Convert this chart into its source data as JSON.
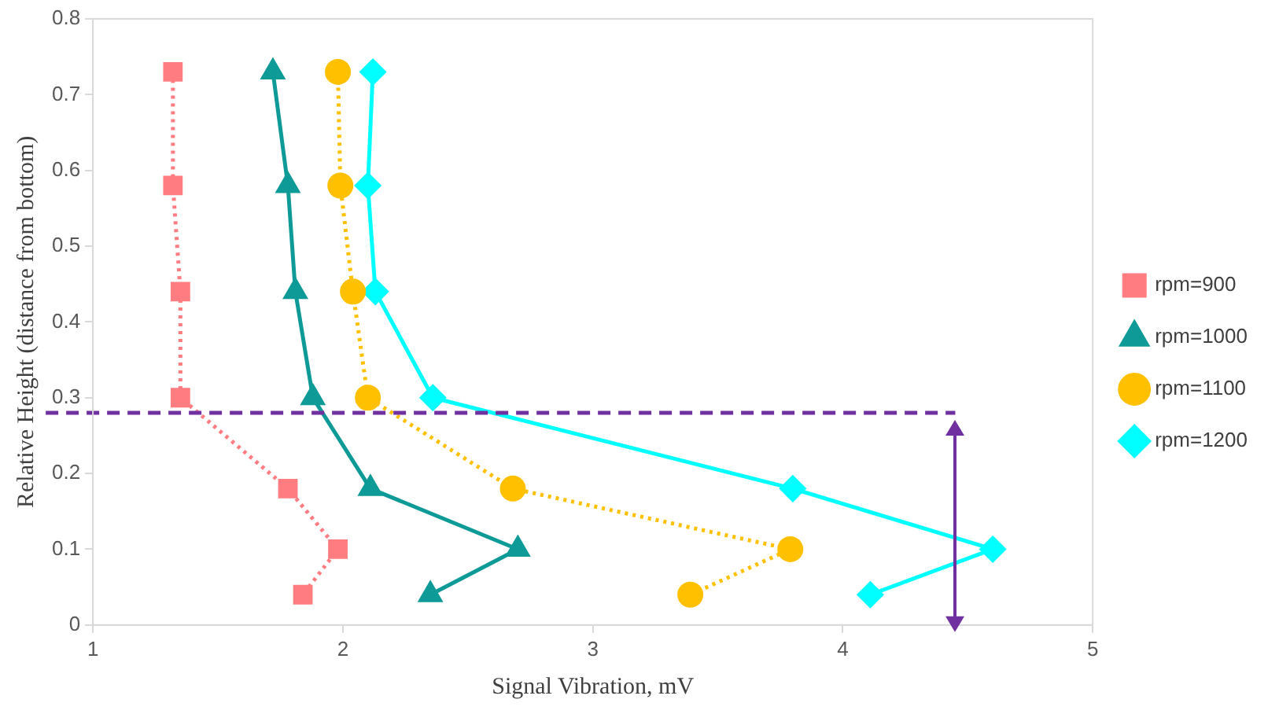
{
  "chart_data": {
    "type": "line",
    "xlabel": "Signal Vibration, mV",
    "ylabel": "Relative Height (distance from bottom)",
    "xlim": [
      1,
      5
    ],
    "xticks": [
      1,
      2,
      3,
      4,
      5
    ],
    "ylim": [
      0,
      0.8
    ],
    "yticks": [
      0,
      0.1,
      0.2,
      0.3,
      0.4,
      0.5,
      0.6,
      0.7,
      0.8
    ],
    "grid": false,
    "legend": "right",
    "ref_lines": [
      {
        "axis": "y",
        "value": 0.28,
        "color": "#7030a0",
        "line_style": "dashed"
      }
    ],
    "series": [
      {
        "name": "rpm=900",
        "color": "#ff7c80",
        "marker": "square",
        "line_style": "dotted",
        "x": [
          1.32,
          1.32,
          1.35,
          1.35,
          1.78,
          1.98,
          1.84
        ],
        "values": [
          0.73,
          0.58,
          0.44,
          0.3,
          0.18,
          0.1,
          0.04
        ]
      },
      {
        "name": "rpm=1000",
        "color": "#0e9a96",
        "marker": "triangle",
        "line_style": "solid",
        "x": [
          1.72,
          1.78,
          1.81,
          1.88,
          2.11,
          2.7,
          2.35
        ],
        "values": [
          0.73,
          0.58,
          0.44,
          0.3,
          0.18,
          0.1,
          0.04
        ]
      },
      {
        "name": "rpm=1100",
        "color": "#ffc000",
        "marker": "circle",
        "line_style": "dotted",
        "x": [
          1.98,
          1.99,
          2.04,
          2.1,
          2.68,
          3.79,
          3.39
        ],
        "values": [
          0.73,
          0.58,
          0.44,
          0.3,
          0.18,
          0.1,
          0.04
        ]
      },
      {
        "name": "rpm=1200",
        "color": "#00ffff",
        "marker": "diamond",
        "line_style": "solid",
        "x": [
          2.12,
          2.1,
          2.13,
          2.36,
          3.8,
          4.6,
          4.11
        ],
        "values": [
          0.73,
          0.58,
          0.44,
          0.3,
          0.18,
          0.1,
          0.04
        ]
      }
    ]
  }
}
